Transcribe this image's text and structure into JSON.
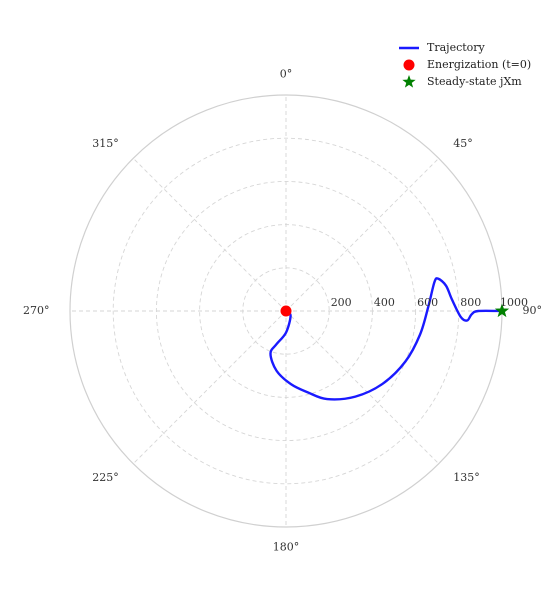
{
  "chart_data": {
    "type": "polar-line",
    "angle_direction": "clockwise",
    "angle_zero": "top",
    "angle_ticks": [
      "0°",
      "45°",
      "90°",
      "135°",
      "180°",
      "225°",
      "270°",
      "315°"
    ],
    "radial_ticks": [
      "200",
      "400",
      "600",
      "800",
      "1000"
    ],
    "rlim": [
      0,
      1000
    ],
    "grid": true,
    "legend_position": "top-right",
    "series": [
      {
        "name": "Trajectory",
        "kind": "line",
        "color": "#1a1aff",
        "points": [
          {
            "theta": 0,
            "r": 0
          },
          {
            "theta": 135,
            "r": 30
          },
          {
            "theta": 180,
            "r": 100
          },
          {
            "theta": 196,
            "r": 160
          },
          {
            "theta": 200,
            "r": 210
          },
          {
            "theta": 189,
            "r": 280
          },
          {
            "theta": 176,
            "r": 340
          },
          {
            "theta": 165,
            "r": 390
          },
          {
            "theta": 155,
            "r": 450
          },
          {
            "theta": 141,
            "r": 510
          },
          {
            "theta": 127,
            "r": 560
          },
          {
            "theta": 113,
            "r": 600
          },
          {
            "theta": 100,
            "r": 630
          },
          {
            "theta": 88,
            "r": 660
          },
          {
            "theta": 79,
            "r": 700
          },
          {
            "theta": 78,
            "r": 720
          },
          {
            "theta": 81,
            "r": 750
          },
          {
            "theta": 86,
            "r": 770
          },
          {
            "theta": 92,
            "r": 810
          },
          {
            "theta": 93,
            "r": 840
          },
          {
            "theta": 91,
            "r": 860
          },
          {
            "theta": 90,
            "r": 890
          },
          {
            "theta": 90,
            "r": 1000
          }
        ]
      },
      {
        "name": "Energization (t=0)",
        "kind": "marker",
        "marker": "circle",
        "color": "#ff0000",
        "points": [
          {
            "theta": 0,
            "r": 0
          }
        ]
      },
      {
        "name": "Steady-state jXm",
        "kind": "marker",
        "marker": "star",
        "color": "#008000",
        "points": [
          {
            "theta": 90,
            "r": 1000
          }
        ]
      }
    ]
  }
}
